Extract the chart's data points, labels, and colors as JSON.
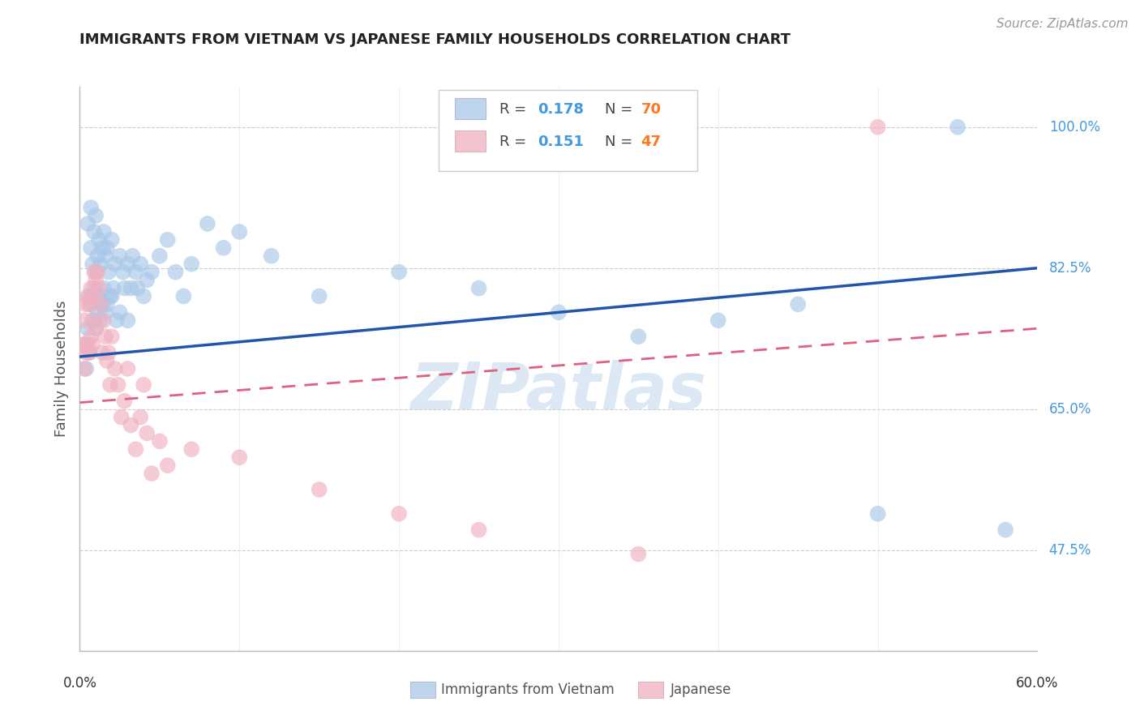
{
  "title": "IMMIGRANTS FROM VIETNAM VS JAPANESE FAMILY HOUSEHOLDS CORRELATION CHART",
  "source": "Source: ZipAtlas.com",
  "ylabel": "Family Households",
  "blue_color": "#a8c8e8",
  "pink_color": "#f0b0c0",
  "trendline_blue_color": "#2255aa",
  "trendline_pink_color": "#e06080",
  "legend_r_color": "#4499dd",
  "legend_n_color": "#ff7722",
  "watermark_color": "#dde8f5",
  "y_min": 0.35,
  "y_max": 1.05,
  "x_min": 0.0,
  "x_max": 0.6,
  "ytick_values": [
    1.0,
    0.825,
    0.65,
    0.475
  ],
  "ytick_labels": [
    "100.0%",
    "82.5%",
    "65.0%",
    "47.5%"
  ],
  "blue_trendline": [
    0.0,
    0.715,
    0.6,
    0.825
  ],
  "pink_trendline": [
    0.0,
    0.658,
    0.6,
    0.75
  ],
  "blue_scatter_x": [
    0.003,
    0.004,
    0.005,
    0.005,
    0.006,
    0.006,
    0.007,
    0.007,
    0.007,
    0.008,
    0.008,
    0.009,
    0.009,
    0.01,
    0.01,
    0.01,
    0.011,
    0.011,
    0.012,
    0.012,
    0.013,
    0.013,
    0.014,
    0.014,
    0.015,
    0.015,
    0.016,
    0.016,
    0.017,
    0.017,
    0.018,
    0.019,
    0.02,
    0.02,
    0.021,
    0.022,
    0.023,
    0.025,
    0.025,
    0.027,
    0.028,
    0.03,
    0.03,
    0.032,
    0.033,
    0.035,
    0.036,
    0.038,
    0.04,
    0.042,
    0.045,
    0.05,
    0.055,
    0.06,
    0.065,
    0.07,
    0.08,
    0.09,
    0.1,
    0.12,
    0.15,
    0.2,
    0.25,
    0.3,
    0.35,
    0.4,
    0.45,
    0.5,
    0.55,
    0.58
  ],
  "blue_scatter_y": [
    0.73,
    0.7,
    0.88,
    0.75,
    0.79,
    0.72,
    0.9,
    0.85,
    0.78,
    0.83,
    0.76,
    0.87,
    0.8,
    0.89,
    0.82,
    0.75,
    0.84,
    0.77,
    0.86,
    0.79,
    0.83,
    0.76,
    0.85,
    0.78,
    0.87,
    0.8,
    0.84,
    0.77,
    0.85,
    0.78,
    0.82,
    0.79,
    0.86,
    0.79,
    0.8,
    0.83,
    0.76,
    0.84,
    0.77,
    0.82,
    0.8,
    0.83,
    0.76,
    0.8,
    0.84,
    0.82,
    0.8,
    0.83,
    0.79,
    0.81,
    0.82,
    0.84,
    0.86,
    0.82,
    0.79,
    0.83,
    0.88,
    0.85,
    0.87,
    0.84,
    0.79,
    0.82,
    0.8,
    0.77,
    0.74,
    0.76,
    0.78,
    0.52,
    1.0,
    0.5
  ],
  "pink_scatter_x": [
    0.002,
    0.003,
    0.003,
    0.004,
    0.004,
    0.005,
    0.005,
    0.006,
    0.006,
    0.007,
    0.007,
    0.008,
    0.008,
    0.009,
    0.009,
    0.01,
    0.01,
    0.011,
    0.012,
    0.013,
    0.014,
    0.015,
    0.016,
    0.017,
    0.018,
    0.019,
    0.02,
    0.022,
    0.024,
    0.026,
    0.028,
    0.03,
    0.032,
    0.035,
    0.038,
    0.04,
    0.042,
    0.045,
    0.05,
    0.055,
    0.07,
    0.1,
    0.15,
    0.2,
    0.25,
    0.35,
    0.5
  ],
  "pink_scatter_y": [
    0.73,
    0.76,
    0.7,
    0.78,
    0.72,
    0.79,
    0.73,
    0.78,
    0.72,
    0.8,
    0.74,
    0.79,
    0.73,
    0.82,
    0.76,
    0.81,
    0.75,
    0.82,
    0.8,
    0.78,
    0.72,
    0.76,
    0.74,
    0.71,
    0.72,
    0.68,
    0.74,
    0.7,
    0.68,
    0.64,
    0.66,
    0.7,
    0.63,
    0.6,
    0.64,
    0.68,
    0.62,
    0.57,
    0.61,
    0.58,
    0.6,
    0.59,
    0.55,
    0.52,
    0.5,
    0.47,
    1.0
  ]
}
